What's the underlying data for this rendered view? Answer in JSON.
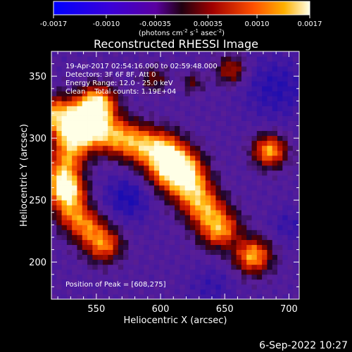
{
  "chart_data": {
    "type": "heatmap",
    "title": "Reconstructed RHESSI Image",
    "xlabel": "Heliocentric X (arcsec)",
    "ylabel": "Heliocentric Y (arcsec)",
    "xlim": [
      515,
      708
    ],
    "ylim": [
      170,
      370
    ],
    "xticks": [
      "550",
      "600",
      "650",
      "700"
    ],
    "yticks": [
      "200",
      "250",
      "300",
      "350"
    ],
    "colorbar": {
      "min": -0.0017,
      "max": 0.0017,
      "tick_labels": [
        "-0.0017",
        "-0.0010",
        "-0.00035",
        "0.00035",
        "0.0010",
        "0.0017"
      ],
      "units_prefix": "(photons cm",
      "units_sup1": "-2",
      "units_mid1": " s",
      "units_sup2": "-1",
      "units_mid2": " asec",
      "units_sup3": "-2",
      "units_suffix": ")"
    },
    "annotations": [
      "19-Apr-2017 02:54:16.000 to 02:59:48.000",
      "Detectors: 3F 6F 8F, Att 0",
      "Energy Range: 12.0 - 25.0 keV",
      "Clean    Total counts: 1.19E+04"
    ],
    "peak_label": "Position of Peak = [608,275]",
    "grid": false
  },
  "footer": {
    "date": "6-Sep-2022 10:27"
  }
}
